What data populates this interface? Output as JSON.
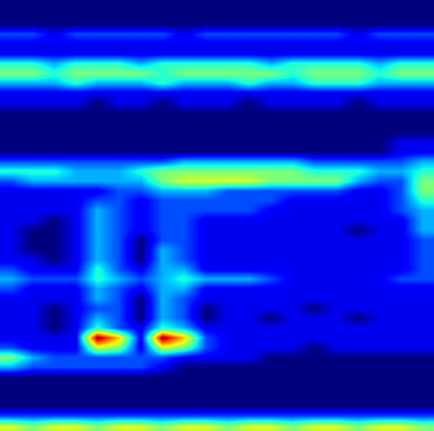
{
  "chart_data": {
    "type": "heatmap",
    "tick_labels": false,
    "color": "jet",
    "cells": [
      [
        0,
        0,
        0,
        0,
        0,
        0,
        0,
        0,
        0,
        0,
        0,
        0,
        0,
        0,
        0,
        0,
        0,
        0,
        0,
        0
      ],
      [
        0,
        0,
        0,
        0,
        0,
        0,
        0,
        0,
        0,
        0,
        0,
        0,
        0,
        0,
        0,
        0,
        0,
        0,
        0,
        0
      ],
      [
        0,
        0,
        0,
        0,
        0,
        0,
        0,
        0,
        0,
        0,
        0,
        0,
        0,
        0,
        0,
        0,
        0,
        0,
        0,
        0
      ],
      [
        2,
        2,
        1,
        2,
        2,
        2,
        2,
        2,
        1,
        2,
        2,
        2,
        2,
        2,
        2,
        2,
        1,
        2,
        2,
        2
      ],
      [
        1,
        1,
        1,
        1,
        1,
        1,
        1,
        1,
        1,
        1,
        1,
        1,
        1,
        1,
        1,
        1,
        1,
        1,
        1,
        1
      ],
      [
        1,
        1,
        1,
        1,
        1,
        1,
        1,
        1,
        1,
        1,
        1,
        1,
        1,
        1,
        1,
        1,
        1,
        1,
        1,
        1
      ],
      [
        4,
        4,
        3,
        4,
        4,
        4,
        3,
        4,
        4,
        4,
        4,
        4,
        3,
        4,
        4,
        4,
        4,
        3,
        4,
        4
      ],
      [
        5,
        5,
        4,
        5,
        5,
        5,
        5,
        4,
        5,
        5,
        5,
        5,
        5,
        4,
        5,
        5,
        5,
        4,
        5,
        5
      ],
      [
        3,
        3,
        3,
        4,
        3,
        3,
        3,
        4,
        3,
        3,
        3,
        4,
        3,
        3,
        4,
        4,
        4,
        3,
        3,
        3
      ],
      [
        1,
        1,
        1,
        1,
        1,
        1,
        1,
        1,
        1,
        1,
        1,
        1,
        1,
        1,
        1,
        1,
        1,
        1,
        1,
        1
      ],
      [
        1,
        1,
        1,
        1,
        0,
        1,
        1,
        0,
        1,
        1,
        1,
        0,
        1,
        1,
        1,
        1,
        0,
        1,
        1,
        1
      ],
      [
        0,
        0,
        0,
        0,
        0,
        0,
        0,
        0,
        0,
        0,
        0,
        0,
        0,
        0,
        0,
        0,
        0,
        0,
        0,
        0
      ],
      [
        0,
        0,
        0,
        0,
        0,
        0,
        0,
        0,
        0,
        0,
        0,
        0,
        0,
        0,
        0,
        0,
        0,
        0,
        0,
        0
      ],
      [
        0,
        0,
        0,
        0,
        0,
        0,
        0,
        0,
        0,
        0,
        0,
        0,
        0,
        0,
        0,
        0,
        0,
        0,
        0,
        0
      ],
      [
        0,
        0,
        0,
        0,
        0,
        0,
        0,
        0,
        0,
        0,
        0,
        0,
        0,
        0,
        0,
        0,
        0,
        0,
        1,
        1
      ],
      [
        0,
        0,
        0,
        0,
        0,
        0,
        0,
        0,
        0,
        0,
        0,
        0,
        0,
        0,
        0,
        0,
        0,
        0,
        1,
        1
      ],
      [
        2,
        2,
        2,
        2,
        2,
        2,
        2,
        2,
        3,
        3,
        3,
        3,
        3,
        3,
        2,
        2,
        2,
        2,
        2,
        3
      ],
      [
        4,
        4,
        4,
        3,
        3,
        3,
        4,
        5,
        5,
        5,
        5,
        5,
        5,
        5,
        4,
        4,
        4,
        3,
        3,
        4
      ],
      [
        2,
        3,
        3,
        3,
        3,
        3,
        3,
        5,
        6,
        6,
        6,
        6,
        5,
        5,
        5,
        5,
        3,
        2,
        2,
        5
      ],
      [
        1,
        1,
        1,
        1,
        1,
        2,
        2,
        3,
        3,
        3,
        2,
        2,
        2,
        2,
        2,
        2,
        1,
        1,
        2,
        5
      ],
      [
        1,
        1,
        1,
        1,
        2,
        2,
        1,
        2,
        2,
        2,
        2,
        2,
        2,
        1,
        1,
        1,
        1,
        1,
        2,
        4
      ],
      [
        1,
        1,
        1,
        1,
        3,
        2,
        1,
        2,
        2,
        2,
        2,
        2,
        1,
        1,
        1,
        1,
        1,
        1,
        2,
        3
      ],
      [
        1,
        1,
        0,
        1,
        3,
        2,
        1,
        2,
        2,
        1,
        1,
        1,
        1,
        1,
        1,
        1,
        1,
        1,
        1,
        3
      ],
      [
        1,
        0,
        0,
        1,
        3,
        2,
        1,
        2,
        2,
        1,
        1,
        1,
        1,
        1,
        1,
        1,
        0,
        1,
        1,
        3
      ],
      [
        1,
        0,
        0,
        1,
        3,
        2,
        0,
        2,
        2,
        1,
        1,
        1,
        1,
        1,
        1,
        1,
        1,
        1,
        1,
        2
      ],
      [
        1,
        0,
        0,
        1,
        3,
        2,
        0,
        3,
        2,
        1,
        1,
        1,
        1,
        1,
        1,
        1,
        1,
        1,
        1,
        2
      ],
      [
        1,
        1,
        0,
        1,
        3,
        2,
        0,
        3,
        2,
        1,
        1,
        1,
        1,
        1,
        1,
        1,
        1,
        1,
        1,
        2
      ],
      [
        2,
        1,
        1,
        1,
        4,
        2,
        1,
        3,
        3,
        1,
        1,
        1,
        1,
        1,
        1,
        1,
        1,
        1,
        1,
        2
      ],
      [
        3,
        2,
        2,
        2,
        4,
        3,
        2,
        3,
        4,
        3,
        3,
        3,
        2,
        1,
        1,
        1,
        1,
        1,
        2,
        2
      ],
      [
        2,
        1,
        1,
        1,
        3,
        2,
        1,
        3,
        3,
        1,
        1,
        1,
        1,
        1,
        1,
        1,
        1,
        1,
        1,
        1
      ],
      [
        1,
        1,
        1,
        1,
        3,
        2,
        0,
        3,
        2,
        1,
        1,
        1,
        1,
        1,
        1,
        1,
        1,
        1,
        1,
        1
      ],
      [
        1,
        1,
        0,
        1,
        2,
        2,
        0,
        3,
        2,
        0,
        1,
        1,
        1,
        1,
        0,
        1,
        1,
        1,
        1,
        1
      ],
      [
        1,
        1,
        0,
        1,
        3,
        2,
        0,
        3,
        2,
        0,
        1,
        1,
        0,
        1,
        1,
        1,
        0,
        1,
        1,
        1
      ],
      [
        1,
        1,
        0,
        1,
        4,
        2,
        1,
        4,
        3,
        1,
        1,
        1,
        1,
        1,
        1,
        1,
        1,
        1,
        1,
        1
      ],
      [
        1,
        1,
        1,
        1,
        10,
        7,
        1,
        10,
        7,
        2,
        1,
        1,
        1,
        1,
        1,
        1,
        1,
        1,
        1,
        1
      ],
      [
        2,
        1,
        1,
        1,
        6,
        5,
        1,
        6,
        5,
        2,
        1,
        1,
        1,
        1,
        0,
        1,
        1,
        1,
        1,
        1
      ],
      [
        5,
        3,
        2,
        2,
        2,
        2,
        2,
        2,
        1,
        1,
        1,
        1,
        0,
        0,
        0,
        0,
        0,
        0,
        0,
        0
      ],
      [
        3,
        2,
        2,
        2,
        2,
        2,
        2,
        1,
        0,
        0,
        0,
        0,
        0,
        0,
        0,
        0,
        0,
        0,
        0,
        0
      ],
      [
        0,
        0,
        0,
        0,
        0,
        0,
        0,
        0,
        0,
        0,
        0,
        0,
        0,
        0,
        0,
        0,
        0,
        0,
        0,
        0
      ],
      [
        0,
        0,
        0,
        0,
        0,
        0,
        0,
        0,
        0,
        0,
        0,
        0,
        0,
        0,
        0,
        0,
        0,
        0,
        0,
        0
      ],
      [
        0,
        0,
        0,
        0,
        0,
        0,
        0,
        0,
        0,
        0,
        0,
        0,
        0,
        0,
        0,
        0,
        0,
        0,
        0,
        0
      ],
      [
        0,
        0,
        0,
        0,
        0,
        0,
        0,
        0,
        0,
        0,
        0,
        0,
        0,
        0,
        0,
        0,
        0,
        0,
        0,
        0
      ],
      [
        2,
        2,
        2,
        2,
        2,
        2,
        2,
        2,
        2,
        2,
        2,
        2,
        2,
        2,
        2,
        2,
        2,
        2,
        2,
        2
      ],
      [
        6,
        5,
        6,
        6,
        5,
        6,
        6,
        5,
        6,
        6,
        5,
        6,
        6,
        5,
        6,
        6,
        5,
        6,
        6,
        5
      ]
    ]
  }
}
